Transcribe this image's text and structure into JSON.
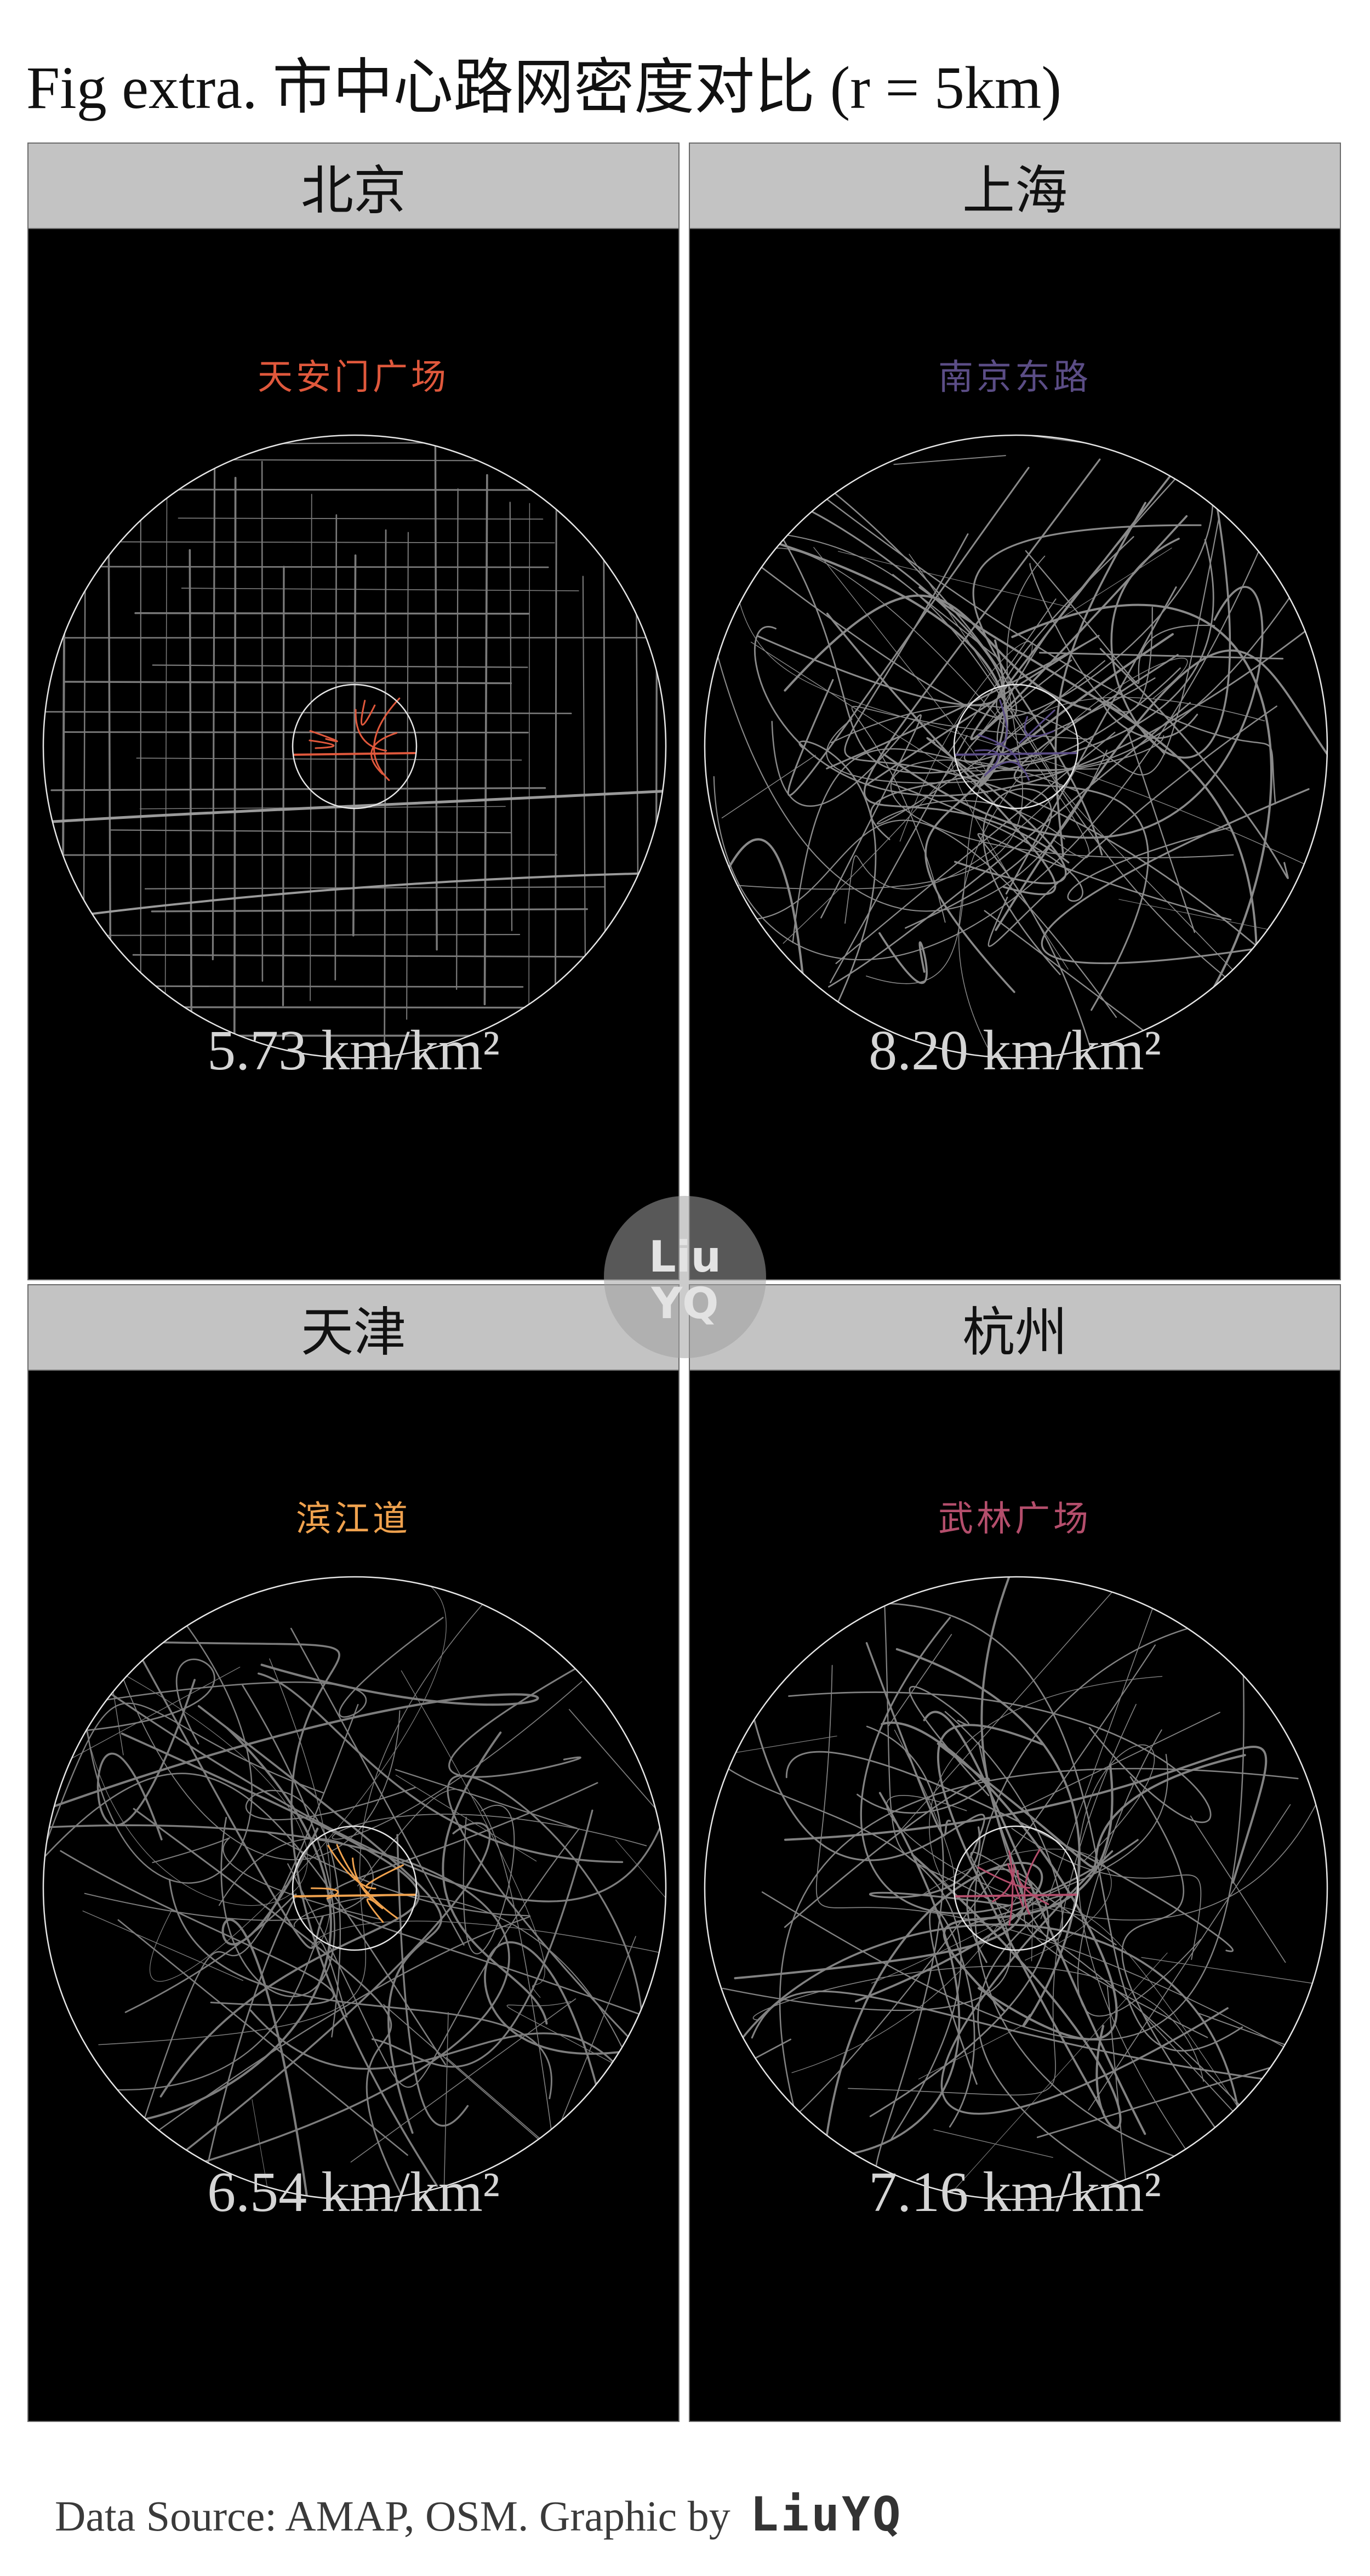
{
  "figure": {
    "title": "Fig extra. 市中心路网密度对比 (r = 5km)",
    "footer": "Data Source: AMAP, OSM. Graphic by",
    "author": "LiuYQ",
    "watermark": [
      "Liu",
      "YQ"
    ]
  },
  "panels": [
    {
      "city": "北京",
      "landmark": "天安门广场",
      "density_text": "5.73 km/km²",
      "density": 5.73,
      "accent": "#e0583c",
      "road_color": "#7a7a7a"
    },
    {
      "city": "上海",
      "landmark": "南京东路",
      "density_text": "8.20 km/km²",
      "density": 8.2,
      "accent": "#5b4d86",
      "road_color": "#8a8a8a"
    },
    {
      "city": "天津",
      "landmark": "滨江道",
      "density_text": "6.54 km/km²",
      "density": 6.54,
      "accent": "#f0a24e",
      "road_color": "#7d7d7d"
    },
    {
      "city": "杭州",
      "landmark": "武林广场",
      "density_text": "7.16 km/km²",
      "density": 7.16,
      "accent": "#b44e6c",
      "road_color": "#828282"
    }
  ],
  "colors": {
    "panel_bg": "#000000",
    "strip_bg": "#c3c3c3",
    "circle_stroke": "#e6e6e6"
  }
}
